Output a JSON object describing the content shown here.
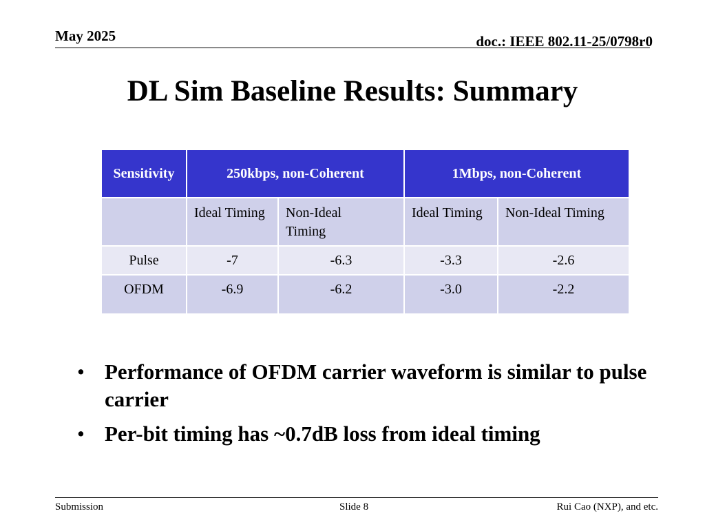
{
  "header": {
    "date": "May 2025",
    "doc_id": "doc.: IEEE 802.11-25/0798r0"
  },
  "title": "DL Sim Baseline Results: Summary",
  "table": {
    "corner_label": "Sensitivity",
    "group_headers": [
      "250kbps, non-Coherent",
      "1Mbps, non-Coherent"
    ],
    "sub_headers": [
      "Ideal Timing",
      "Non-Ideal Timing",
      "Ideal Timing",
      "Non-Ideal Timing"
    ],
    "rows": [
      {
        "label": "Pulse",
        "values": [
          "-7",
          "-6.3",
          "-3.3",
          "-2.6"
        ]
      },
      {
        "label": "OFDM",
        "values": [
          "-6.9",
          "-6.2",
          "-3.0",
          "-2.2"
        ]
      }
    ]
  },
  "bullets": [
    "Performance of OFDM carrier waveform is similar to pulse carrier",
    "Per-bit timing has ~0.7dB loss from ideal timing"
  ],
  "footer": {
    "left": "Submission",
    "center": "Slide 8",
    "right": "Rui Cao (NXP), and etc."
  },
  "colors": {
    "header_fill": "#3535cc",
    "band_fill": "#cfd0ea",
    "light_fill": "#e8e8f4"
  }
}
